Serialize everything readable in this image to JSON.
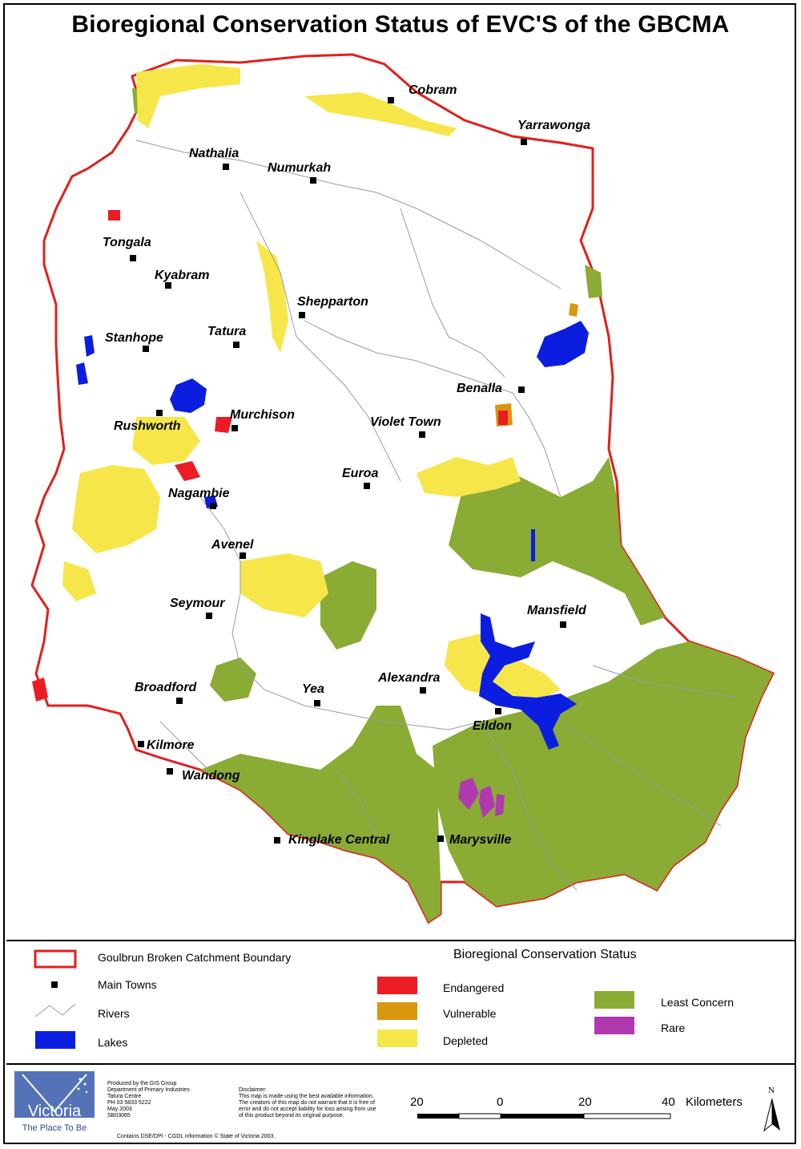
{
  "title": "Bioregional Conservation Status of EVC'S of the GBCMA",
  "towns": [
    {
      "name": "Cobram"
    },
    {
      "name": "Yarrawonga"
    },
    {
      "name": "Nathalia"
    },
    {
      "name": "Numurkah"
    },
    {
      "name": "Tongala"
    },
    {
      "name": "Kyabram"
    },
    {
      "name": "Shepparton"
    },
    {
      "name": "Stanhope"
    },
    {
      "name": "Tatura"
    },
    {
      "name": "Benalla"
    },
    {
      "name": "Rushworth"
    },
    {
      "name": "Murchison"
    },
    {
      "name": "Violet Town"
    },
    {
      "name": "Euroa"
    },
    {
      "name": "Nagambie"
    },
    {
      "name": "Avenel"
    },
    {
      "name": "Mansfield"
    },
    {
      "name": "Seymour"
    },
    {
      "name": "Alexandra"
    },
    {
      "name": "Broadford"
    },
    {
      "name": "Yea"
    },
    {
      "name": "Eildon"
    },
    {
      "name": "Kilmore"
    },
    {
      "name": "Wandong"
    },
    {
      "name": "Kinglake Central"
    },
    {
      "name": "Marysville"
    }
  ],
  "legend": {
    "boundary": "Goulbrun Broken Catchment Boundary",
    "towns": "Main Towns",
    "rivers": "Rivers",
    "lakes": "Lakes",
    "status_title": "Bioregional Conservation Status",
    "endangered": "Endangered",
    "vulnerable": "Vulnerable",
    "depleted": "Depleted",
    "least_concern": "Least Concern",
    "rare": "Rare"
  },
  "colors": {
    "boundary": "#e0201c",
    "lakes": "#0b1ee0",
    "endangered": "#ec1c24",
    "vulnerable": "#d9960f",
    "depleted": "#f6e64a",
    "least_concern": "#8aab34",
    "rare": "#b039b0",
    "rivers": "#9a9aa8"
  },
  "footer": {
    "logo_text": "Victoria",
    "logo_tagline": "The Place To Be",
    "produced": [
      "Produced by the GIS Group",
      "Department of Primary Industries",
      "Tatura Centre",
      "PH 03 5833 5222",
      "May 2003",
      "SB03065"
    ],
    "disclaimer_title": "Disclaimer:",
    "disclaimer": [
      "This map is made using the best available information.",
      "The creators of this map do not warrant that it is free of",
      "error and do not accept liability for loss arising from use",
      "of this product beyond its original purpose."
    ],
    "copyright": "Contains DSE/DPI - CGDL information © State of Victoria 2003.",
    "scale": {
      "ticks": [
        "20",
        "0",
        "20",
        "40"
      ],
      "unit": "Kilometers"
    },
    "north": "N"
  }
}
